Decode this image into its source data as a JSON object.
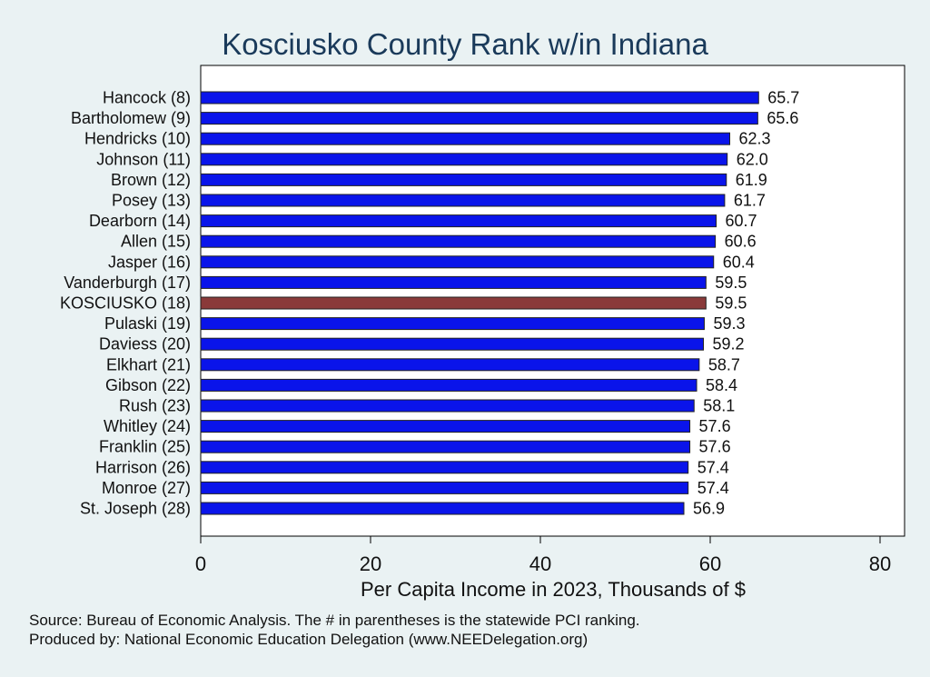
{
  "chart_data": {
    "type": "bar",
    "orientation": "horizontal",
    "title": "Kosciusko County Rank w/in Indiana",
    "xlabel": "Per Capita Income in 2023, Thousands of $",
    "ylabel": "",
    "xlim": [
      0,
      80
    ],
    "xticks": [
      "0",
      "20",
      "40",
      "60",
      "80"
    ],
    "grid": false,
    "highlight_category": "KOSCIUSKO (18)",
    "colors": {
      "bar": "#0a14ea",
      "highlight": "#8a3a3a",
      "background": "#eaf2f3",
      "plot": "#ffffff"
    },
    "categories": [
      "Hancock  (8)",
      "Bartholomew  (9)",
      "Hendricks (10)",
      "Johnson (11)",
      "Brown (12)",
      "Posey (13)",
      "Dearborn (14)",
      "Allen (15)",
      "Jasper (16)",
      "Vanderburgh (17)",
      "KOSCIUSKO (18)",
      "Pulaski (19)",
      "Daviess (20)",
      "Elkhart (21)",
      "Gibson (22)",
      "Rush (23)",
      "Whitley (24)",
      "Franklin (25)",
      "Harrison (26)",
      "Monroe (27)",
      "St. Joseph (28)"
    ],
    "values": [
      65.7,
      65.6,
      62.3,
      62.0,
      61.9,
      61.7,
      60.7,
      60.6,
      60.4,
      59.5,
      59.5,
      59.3,
      59.2,
      58.7,
      58.4,
      58.1,
      57.6,
      57.6,
      57.4,
      57.4,
      56.9
    ],
    "value_labels": [
      "65.7",
      "65.6",
      "62.3",
      "62.0",
      "61.9",
      "61.7",
      "60.7",
      "60.6",
      "60.4",
      "59.5",
      "59.5",
      "59.3",
      "59.2",
      "58.7",
      "58.4",
      "58.1",
      "57.6",
      "57.6",
      "57.4",
      "57.4",
      "56.9"
    ]
  },
  "notes": {
    "source": "Source: Bureau of Economic Analysis. The # in parentheses is the statewide PCI ranking.",
    "produced_by": "Produced by: National Economic Education Delegation (www.NEEDelegation.org)"
  }
}
